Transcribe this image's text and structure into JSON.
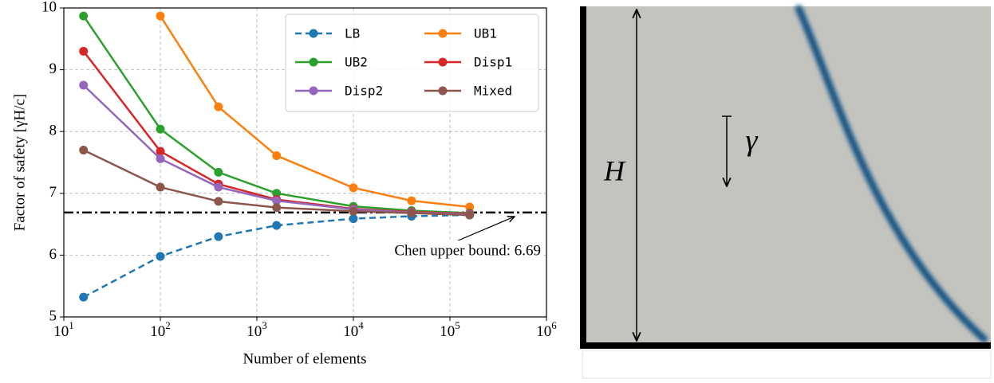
{
  "chart_data": {
    "type": "line",
    "xlabel": "Number of elements",
    "ylabel": "Factor of safety [γH/c]",
    "xscale": "log",
    "grid": true,
    "legend": "upper right",
    "x": [
      16,
      100,
      400,
      1600,
      10000,
      40000,
      160000
    ],
    "xlim": [
      10,
      1000000
    ],
    "xticks": [
      {
        "value": 10,
        "label": "10",
        "exponent": "1"
      },
      {
        "value": 100,
        "label": "10",
        "exponent": "2"
      },
      {
        "value": 1000,
        "label": "10",
        "exponent": "3"
      },
      {
        "value": 10000,
        "label": "10",
        "exponent": "4"
      },
      {
        "value": 100000,
        "label": "10",
        "exponent": "5"
      },
      {
        "value": 1000000,
        "label": "10",
        "exponent": "6"
      }
    ],
    "ylim": [
      5,
      10
    ],
    "yticks": [
      5,
      6,
      7,
      8,
      9,
      10
    ],
    "series": [
      {
        "name": "LB",
        "color": "#1f77b4",
        "dashed": true,
        "values": [
          5.32,
          5.98,
          6.3,
          6.48,
          6.59,
          6.63,
          6.65
        ]
      },
      {
        "name": "UB1",
        "color": "#ff7f0e",
        "values": [
          null,
          9.87,
          8.4,
          7.61,
          7.09,
          6.88,
          6.78
        ]
      },
      {
        "name": "UB2",
        "color": "#2ca02c",
        "values": [
          9.87,
          8.04,
          7.34,
          7.0,
          6.79,
          6.72,
          6.68
        ]
      },
      {
        "name": "Disp1",
        "color": "#d62728",
        "values": [
          9.3,
          7.68,
          7.15,
          6.9,
          6.75,
          6.7,
          6.67
        ]
      },
      {
        "name": "Disp2",
        "color": "#9467bd",
        "values": [
          8.75,
          7.56,
          7.1,
          6.88,
          6.74,
          6.69,
          6.66
        ]
      },
      {
        "name": "Mixed",
        "color": "#8c564b",
        "values": [
          7.7,
          7.1,
          6.87,
          6.77,
          6.71,
          6.68,
          6.65
        ]
      }
    ],
    "reference_line": {
      "value": 6.69,
      "color": "#000000"
    },
    "annotation": "Chen upper bound: 6.69"
  },
  "diagram": {
    "height_label": "H",
    "weight_label": "γ"
  }
}
